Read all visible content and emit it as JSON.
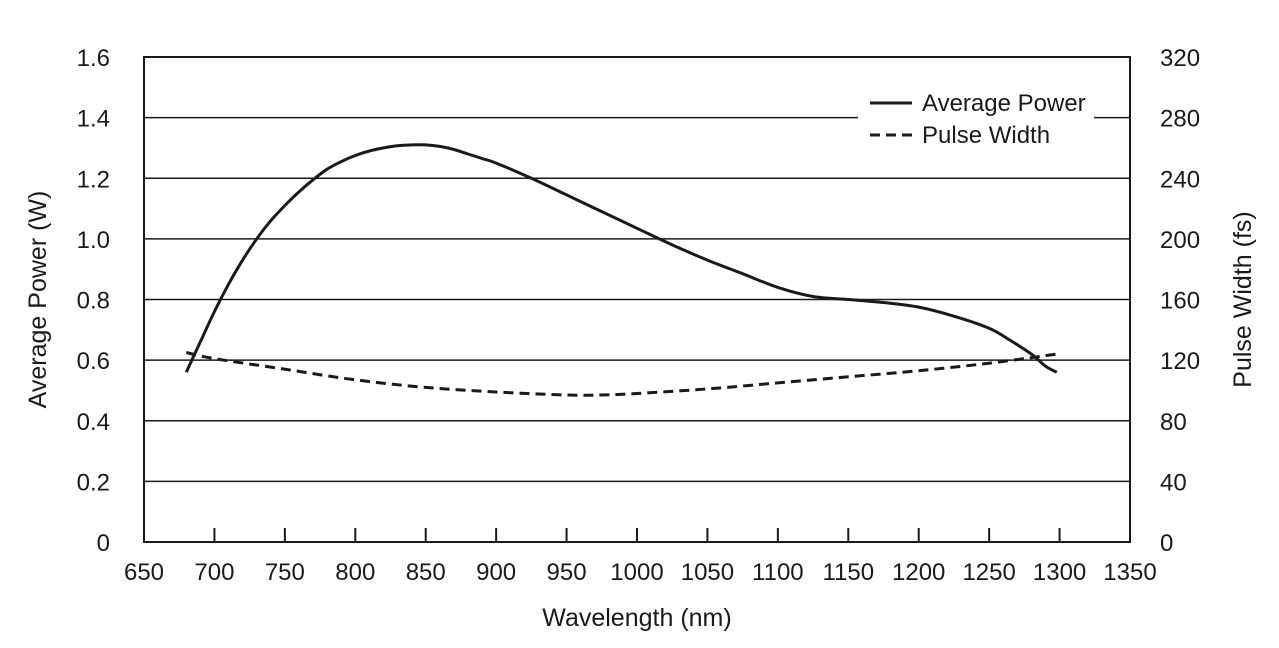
{
  "chart_data": {
    "type": "line",
    "title": "",
    "xlabel": "Wavelength (nm)",
    "ylabel": "Average Power (W)",
    "y2label": "Pulse Width (fs)",
    "xlim": [
      650,
      1350
    ],
    "ylim": [
      0,
      1.6
    ],
    "y2lim": [
      0,
      320
    ],
    "x_ticks": [
      "650",
      "700",
      "750",
      "800",
      "850",
      "900",
      "950",
      "1000",
      "1050",
      "1100",
      "1150",
      "1200",
      "1250",
      "1300",
      "1350"
    ],
    "y_ticks": [
      "0",
      "0.2",
      "0.4",
      "0.6",
      "0.8",
      "1.0",
      "1.2",
      "1.4",
      "1.6"
    ],
    "y2_ticks": [
      "0",
      "40",
      "80",
      "120",
      "160",
      "200",
      "240",
      "280",
      "320"
    ],
    "grid": "horizontal",
    "legend_position": "top-right",
    "series": [
      {
        "name": "Average Power",
        "axis": "left",
        "style": "solid",
        "x": [
          680,
          690,
          700,
          710,
          720,
          730,
          740,
          750,
          760,
          770,
          780,
          790,
          800,
          810,
          820,
          830,
          840,
          850,
          860,
          870,
          880,
          890,
          900,
          925,
          950,
          975,
          1000,
          1025,
          1050,
          1075,
          1100,
          1125,
          1150,
          1175,
          1200,
          1225,
          1250,
          1265,
          1280,
          1290,
          1298
        ],
        "y": [
          0.56,
          0.66,
          0.76,
          0.85,
          0.93,
          1.0,
          1.06,
          1.11,
          1.155,
          1.195,
          1.23,
          1.255,
          1.275,
          1.29,
          1.3,
          1.307,
          1.31,
          1.31,
          1.305,
          1.295,
          1.28,
          1.265,
          1.25,
          1.2,
          1.145,
          1.09,
          1.035,
          0.98,
          0.93,
          0.885,
          0.84,
          0.81,
          0.8,
          0.79,
          0.775,
          0.745,
          0.705,
          0.665,
          0.62,
          0.58,
          0.56
        ]
      },
      {
        "name": "Pulse Width",
        "axis": "right",
        "style": "dashed",
        "x": [
          680,
          700,
          750,
          800,
          850,
          900,
          950,
          975,
          1000,
          1050,
          1100,
          1150,
          1200,
          1250,
          1298
        ],
        "y": [
          125,
          121,
          114,
          107,
          102,
          99,
          97,
          97,
          98,
          101,
          105,
          109,
          113,
          118,
          124
        ]
      }
    ]
  }
}
